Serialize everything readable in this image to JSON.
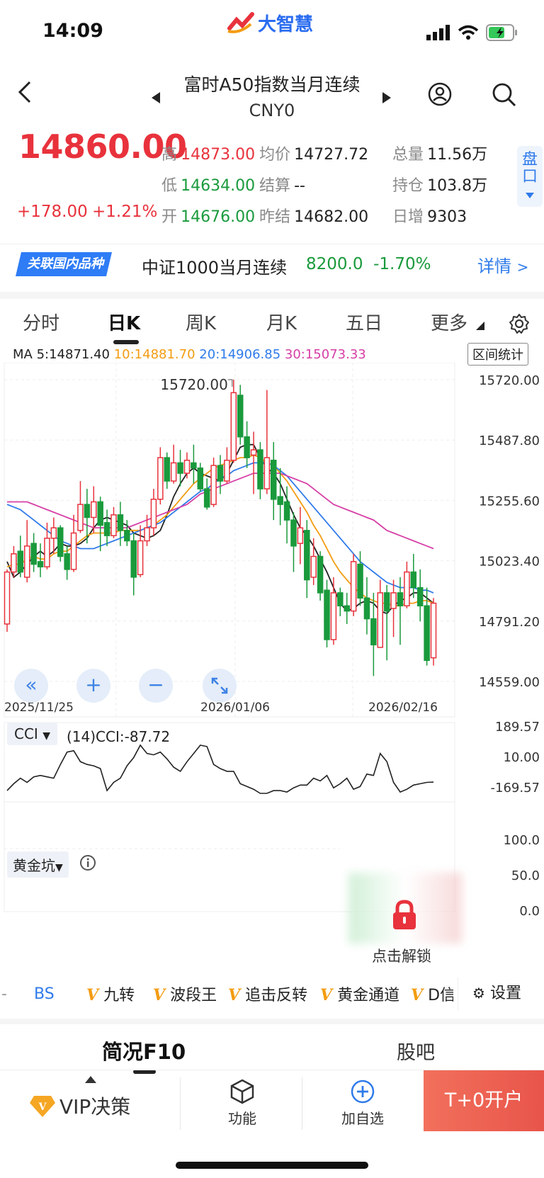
{
  "status_bar": {
    "time": "14:09",
    "logo_text": "大智慧"
  },
  "header": {
    "title": "富时A50指数当月连续",
    "code": "CNY0"
  },
  "quote": {
    "price": "14860.00",
    "change_abs": "+178.00",
    "change_pct": "+1.21%",
    "high_label": "高",
    "high": "14873.00",
    "low_label": "低",
    "low": "14634.00",
    "open_label": "开",
    "open": "14676.00",
    "avg_label": "均价",
    "avg": "14727.72",
    "settle_label": "结算",
    "settle": "--",
    "prev_settle_label": "昨结",
    "prev_settle": "14682.00",
    "volume_label": "总量",
    "volume": "11.56万",
    "oi_label": "持仓",
    "oi": "103.8万",
    "daily_inc_label": "日增",
    "daily_inc": "9303",
    "pankou_label": "盘口"
  },
  "related": {
    "badge": "关联国内品种",
    "name": "中证1000当月连续",
    "price": "8200.0",
    "pct": "-1.70%",
    "detail": "详情"
  },
  "period_tabs": [
    "分时",
    "日K",
    "周K",
    "月K",
    "五日",
    "更多"
  ],
  "chart": {
    "ma_prefix": "MA 5:14871.40",
    "ma10": "10:14881.70",
    "ma20": "20:14906.85",
    "ma30": "30:15073.33",
    "range_stats": "区间统计",
    "y_ticks": [
      "15720.00",
      "15487.80",
      "15255.60",
      "15023.40",
      "14791.20",
      "14559.00"
    ],
    "high_mark": "15720.00",
    "low_mark": "14559.00",
    "x_ticks": [
      "2025/11/25",
      "2026/01/06",
      "2026/02/16"
    ],
    "colors": {
      "ma5": "#222222",
      "ma10": "#f39c12",
      "ma20": "#2f7bea",
      "ma30": "#d63fa6",
      "up": "#e8323c",
      "down": "#1a9a3c"
    }
  },
  "chart_data": {
    "type": "candlestick",
    "x_ticks": [
      "2025/11/25",
      "2026/01/06",
      "2026/02/16"
    ],
    "ylim": [
      14559.0,
      15720.0
    ],
    "y_ticks": [
      15720.0,
      15487.8,
      15255.6,
      15023.4,
      14791.2,
      14559.0
    ],
    "candles": [
      [
        14780,
        14980,
        14750,
        14990
      ],
      [
        14980,
        15050,
        14960,
        15080
      ],
      [
        15060,
        14980,
        14960,
        15120
      ],
      [
        14960,
        15080,
        14940,
        15180
      ],
      [
        15090,
        15010,
        14980,
        15130
      ],
      [
        15020,
        15000,
        14960,
        15090
      ],
      [
        15000,
        15110,
        14990,
        15170
      ],
      [
        15110,
        15150,
        15050,
        15190
      ],
      [
        15150,
        15040,
        15020,
        15160
      ],
      [
        15050,
        14990,
        14950,
        15080
      ],
      [
        14990,
        15130,
        14980,
        15200
      ],
      [
        15140,
        15240,
        15130,
        15330
      ],
      [
        15240,
        15190,
        15090,
        15300
      ],
      [
        15190,
        15250,
        15130,
        15310
      ],
      [
        15250,
        15160,
        15060,
        15270
      ],
      [
        15170,
        15120,
        15080,
        15220
      ],
      [
        15120,
        15200,
        15110,
        15230
      ],
      [
        15200,
        15140,
        15080,
        15250
      ],
      [
        15140,
        15100,
        15080,
        15180
      ],
      [
        15100,
        14960,
        14890,
        15130
      ],
      [
        14970,
        15100,
        14960,
        15160
      ],
      [
        15100,
        15150,
        15080,
        15200
      ],
      [
        15150,
        15260,
        15120,
        15300
      ],
      [
        15260,
        15420,
        15240,
        15460
      ],
      [
        15420,
        15330,
        15300,
        15440
      ],
      [
        15330,
        15400,
        15320,
        15470
      ],
      [
        15400,
        15360,
        15310,
        15450
      ],
      [
        15360,
        15410,
        15340,
        15440
      ],
      [
        15400,
        15380,
        15320,
        15470
      ],
      [
        15380,
        15300,
        15290,
        15400
      ],
      [
        15300,
        15230,
        15220,
        15340
      ],
      [
        15240,
        15390,
        15230,
        15420
      ],
      [
        15390,
        15330,
        15280,
        15430
      ],
      [
        15330,
        15410,
        15320,
        15460
      ],
      [
        15410,
        15670,
        15400,
        15720
      ],
      [
        15660,
        15500,
        15470,
        15700
      ],
      [
        15500,
        15420,
        15380,
        15560
      ],
      [
        15430,
        15450,
        15280,
        15520
      ],
      [
        15450,
        15300,
        15260,
        15480
      ],
      [
        15300,
        15420,
        15280,
        15680
      ],
      [
        15410,
        15260,
        15180,
        15480
      ],
      [
        15270,
        15240,
        15160,
        15380
      ],
      [
        15250,
        15180,
        15090,
        15310
      ],
      [
        15180,
        15080,
        14980,
        15210
      ],
      [
        15090,
        15150,
        15010,
        15230
      ],
      [
        15140,
        14950,
        14880,
        15180
      ],
      [
        14960,
        15040,
        14930,
        15110
      ],
      [
        15040,
        14900,
        14870,
        15060
      ],
      [
        14910,
        14720,
        14690,
        14950
      ],
      [
        14720,
        14900,
        14700,
        14960
      ],
      [
        14900,
        14850,
        14810,
        14920
      ],
      [
        14850,
        14830,
        14780,
        14900
      ],
      [
        14830,
        15020,
        14810,
        15050
      ],
      [
        15010,
        14880,
        14850,
        15060
      ],
      [
        14880,
        14800,
        14740,
        14960
      ],
      [
        14800,
        14700,
        14580,
        14900
      ],
      [
        14690,
        14900,
        14690,
        14950
      ],
      [
        14900,
        14830,
        14640,
        14930
      ],
      [
        14840,
        14900,
        14730,
        14950
      ],
      [
        14900,
        14850,
        14700,
        14960
      ],
      [
        14850,
        14980,
        14840,
        15020
      ],
      [
        14980,
        14920,
        14880,
        15050
      ],
      [
        14920,
        14850,
        14790,
        14990
      ],
      [
        14850,
        14640,
        14620,
        14920
      ],
      [
        14650,
        14860,
        14620,
        14880
      ]
    ],
    "ma_series": [
      {
        "name": "MA5",
        "values": [
          15020,
          14960,
          14980,
          15010,
          15040,
          15060,
          15040,
          15060,
          15090,
          15080,
          15080,
          15090,
          15110,
          15150,
          15180,
          15190,
          15180,
          15170,
          15160,
          15130,
          15120,
          15110,
          15120,
          15140,
          15200,
          15270,
          15320,
          15360,
          15380,
          15360,
          15350,
          15340,
          15330,
          15360,
          15410,
          15460,
          15470,
          15470,
          15420,
          15380,
          15360,
          15320,
          15260,
          15200,
          15150,
          15120,
          15080,
          15030,
          14980,
          14920,
          14860,
          14830,
          14840,
          14860,
          14870,
          14860,
          14830,
          14820,
          14850,
          14870,
          14880,
          14900,
          14900,
          14880,
          14860
        ]
      },
      {
        "name": "MA10",
        "values": [
          15000,
          15010,
          15010,
          15030,
          15040,
          15030,
          15030,
          15050,
          15060,
          15060,
          15080,
          15100,
          15120,
          15130,
          15130,
          15130,
          15130,
          15140,
          15140,
          15140,
          15140,
          15150,
          15160,
          15180,
          15200,
          15230,
          15260,
          15290,
          15320,
          15340,
          15360,
          15380,
          15390,
          15400,
          15410,
          15420,
          15420,
          15430,
          15420,
          15400,
          15390,
          15360,
          15330,
          15290,
          15250,
          15210,
          15160,
          15120,
          15070,
          15020,
          14980,
          14950,
          14920,
          14900,
          14880,
          14870,
          14860,
          14860,
          14850,
          14850,
          14860,
          14860,
          14870,
          14870,
          14860
        ]
      },
      {
        "name": "MA20",
        "values": [
          15240,
          15230,
          15220,
          15200,
          15180,
          15160,
          15140,
          15120,
          15100,
          15090,
          15080,
          15070,
          15070,
          15070,
          15080,
          15090,
          15100,
          15110,
          15120,
          15130,
          15140,
          15150,
          15160,
          15170,
          15190,
          15210,
          15230,
          15250,
          15270,
          15290,
          15300,
          15320,
          15340,
          15350,
          15370,
          15380,
          15390,
          15400,
          15400,
          15400,
          15390,
          15370,
          15350,
          15320,
          15290,
          15260,
          15230,
          15200,
          15170,
          15140,
          15110,
          15080,
          15050,
          15020,
          15000,
          14980,
          14960,
          14940,
          14930,
          14920,
          14920,
          14920,
          14910,
          14910,
          14900
        ]
      },
      {
        "name": "MA30",
        "values": [
          15250,
          15250,
          15250,
          15250,
          15240,
          15230,
          15220,
          15210,
          15200,
          15190,
          15180,
          15170,
          15160,
          15150,
          15150,
          15150,
          15150,
          15150,
          15150,
          15160,
          15170,
          15180,
          15190,
          15200,
          15210,
          15220,
          15230,
          15240,
          15260,
          15280,
          15290,
          15300,
          15310,
          15320,
          15330,
          15340,
          15350,
          15360,
          15360,
          15360,
          15360,
          15360,
          15350,
          15340,
          15330,
          15320,
          15300,
          15280,
          15260,
          15240,
          15230,
          15220,
          15210,
          15200,
          15190,
          15180,
          15160,
          15140,
          15130,
          15120,
          15110,
          15100,
          15090,
          15080,
          15070
        ]
      }
    ],
    "cci": {
      "label": "(14)CCI:-87.72",
      "y_ticks": [
        189.57,
        10.0,
        -169.57
      ],
      "values": [
        -150,
        -100,
        -60,
        -90,
        -50,
        -40,
        -50,
        -60,
        40,
        130,
        140,
        60,
        40,
        30,
        10,
        -150,
        -90,
        -60,
        30,
        90,
        180,
        120,
        110,
        130,
        80,
        20,
        -10,
        60,
        120,
        180,
        170,
        40,
        10,
        -10,
        -10,
        -100,
        -120,
        -140,
        -170,
        -170,
        -150,
        -150,
        -160,
        -130,
        -110,
        -110,
        -60,
        -80,
        -40,
        -130,
        -100,
        -60,
        -140,
        -120,
        -30,
        -40,
        120,
        60,
        -90,
        -160,
        -140,
        -110,
        -100,
        -90,
        -88
      ]
    },
    "golden_pit": {
      "label": "黄金坑",
      "y_ticks": [
        100.0,
        50.0,
        0.0
      ],
      "unlock_text": "点击解锁"
    }
  },
  "cci_selector": "CCI",
  "gold_selector": "黄金坑",
  "indicator_bar": {
    "bs": "BS",
    "items": [
      "九转",
      "波段王",
      "追击反转",
      "黄金通道",
      "D信"
    ],
    "settings": "设置"
  },
  "bottom_tabs": {
    "f10": "简况F10",
    "guba": "股吧"
  },
  "bottom_nav": {
    "vip": "VIP决策",
    "functions": "功能",
    "add_watch": "加自选",
    "open_account": "T+0开户"
  }
}
